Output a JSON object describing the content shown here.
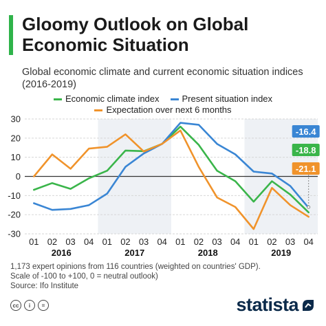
{
  "header": {
    "title": "Gloomy Outlook on Global Economic Situation",
    "subtitle": "Global economic climate and current economic situation indices (2016-2019)"
  },
  "legend": [
    {
      "label": "Economic climate index",
      "color": "#3ab54a"
    },
    {
      "label": "Present situation index",
      "color": "#3a86d4"
    },
    {
      "label": "Expectation over next 6 months",
      "color": "#f0932b"
    }
  ],
  "chart_data": {
    "type": "line",
    "x": [
      "Q1",
      "Q2",
      "Q3",
      "Q4",
      "Q1",
      "Q2",
      "Q3",
      "Q4",
      "Q1",
      "Q2",
      "Q3",
      "Q4",
      "Q1",
      "Q2",
      "Q3",
      "Q4"
    ],
    "tick_labels": [
      "01",
      "02",
      "03",
      "04",
      "01",
      "02",
      "03",
      "04",
      "01",
      "02",
      "03",
      "04",
      "01",
      "02",
      "03",
      "04"
    ],
    "years": [
      "2016",
      "2017",
      "2018",
      "2019"
    ],
    "ylim": [
      -30,
      30
    ],
    "yticks": [
      30,
      20,
      10,
      0,
      -10,
      -20,
      -30
    ],
    "grid": true,
    "series": [
      {
        "name": "Economic climate index",
        "color": "#3ab54a",
        "values": [
          -7,
          -3.5,
          -6.5,
          -1,
          3,
          13.5,
          13.2,
          17,
          26,
          16.5,
          3,
          -2.5,
          -13.2,
          -2.5,
          -9.5,
          -18.8
        ]
      },
      {
        "name": "Present situation index",
        "color": "#3a86d4",
        "values": [
          -14,
          -17.5,
          -17,
          -15,
          -9,
          5,
          12,
          17,
          28,
          27,
          17,
          11.5,
          2.5,
          1.5,
          -5,
          -16.4
        ]
      },
      {
        "name": "Expectation over next 6 months",
        "color": "#f0932b",
        "values": [
          0,
          11.5,
          4,
          14.5,
          15.5,
          22,
          13,
          17,
          24,
          5,
          -11,
          -16,
          -27.5,
          -6,
          -15,
          -21.1
        ]
      }
    ],
    "annotations": [
      {
        "text": "-16.4",
        "color": "#3a86d4"
      },
      {
        "text": "-18.8",
        "color": "#3ab54a"
      },
      {
        "text": "-21.1",
        "color": "#f0932b"
      }
    ]
  },
  "footer": {
    "note_line1": "1,173 expert opinions from 116 countries (weighted on countries' GDP).",
    "note_line2": "Scale of -100 to +100, 0 = neutral outlook)",
    "source": "Source: Ifo Institute"
  },
  "brand": {
    "name": "statista"
  }
}
